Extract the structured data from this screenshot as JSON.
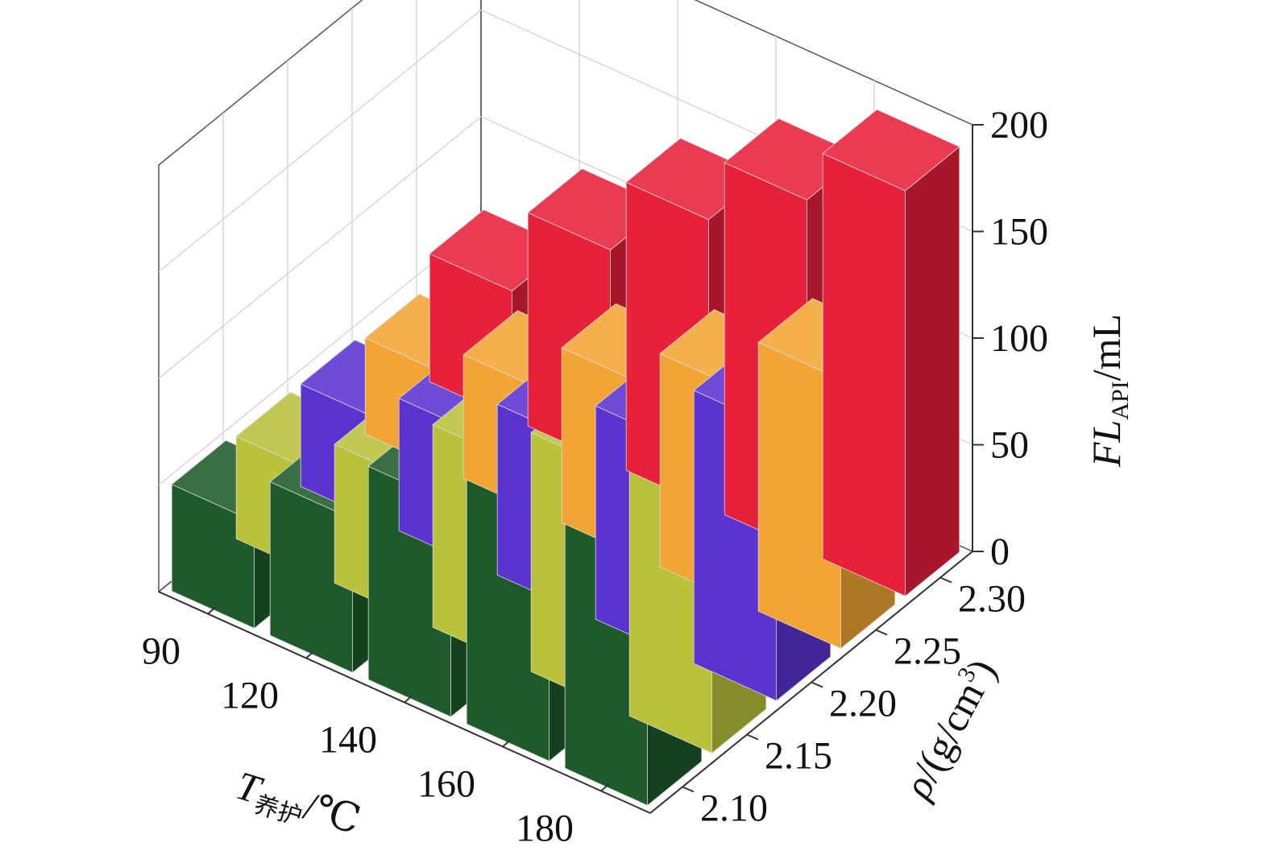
{
  "chart_data": {
    "type": "bar",
    "subtype": "3d-bar",
    "x_axis": {
      "title_main": "T",
      "title_sub": "养护",
      "title_unit": "/℃",
      "categories": [
        "180",
        "160",
        "140",
        "120",
        "90"
      ]
    },
    "y_axis": {
      "title_main": "ρ",
      "title_unit": "/(g/cm",
      "title_sup": "3",
      "title_close": ")",
      "categories": [
        "2.10",
        "2.15",
        "2.20",
        "2.25",
        "2.30"
      ]
    },
    "z_axis": {
      "title_main": "FL",
      "title_sub": "API",
      "title_unit": "/mL",
      "range": [
        0,
        200
      ],
      "ticks": [
        "0",
        "50",
        "100",
        "150",
        "200"
      ]
    },
    "series": [
      {
        "color": "#1f5a2a",
        "values": [
          150,
          135,
          100,
          72,
          50
        ]
      },
      {
        "color": "#b9c23a",
        "values": [
          135,
          112,
          95,
          65,
          48
        ]
      },
      {
        "color": "#5b33d1",
        "values": [
          128,
          100,
          80,
          62,
          48
        ]
      },
      {
        "color": "#f2a534",
        "values": [
          126,
          100,
          82,
          58,
          45
        ]
      },
      {
        "color": "#e8203a",
        "values": [
          190,
          165,
          135,
          100,
          60
        ]
      }
    ],
    "grid": true,
    "legend": "none"
  }
}
